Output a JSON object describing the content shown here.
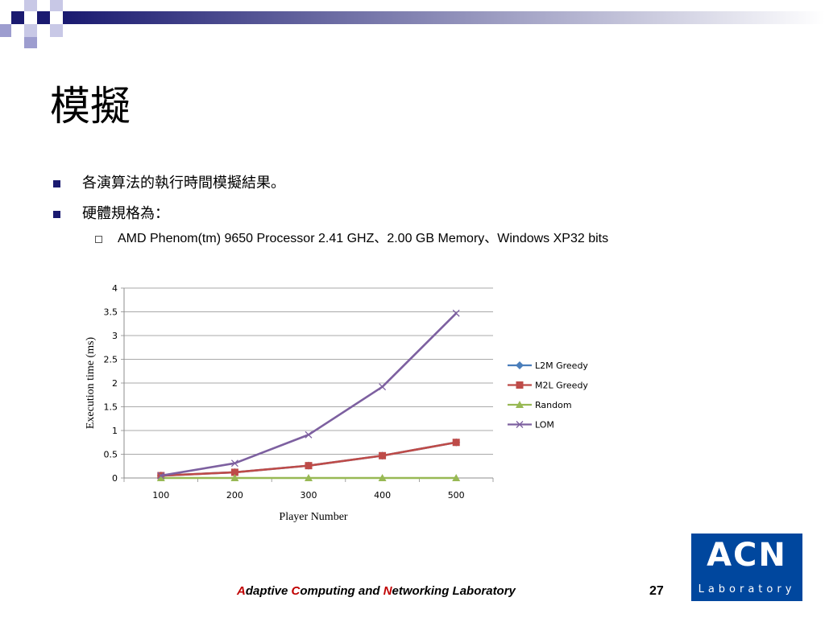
{
  "slide": {
    "title": "模擬",
    "bullets": [
      "各演算法的執行時間模擬結果。",
      "硬體規格為："
    ],
    "sub_bullet": "AMD Phenom(tm) 9650 Processor 2.41 GHZ、2.00 GB Memory、Windows XP32 bits"
  },
  "footer": {
    "lab_parts": [
      {
        "text": "A",
        "highlight": true
      },
      {
        "text": "daptive ",
        "highlight": false
      },
      {
        "text": "C",
        "highlight": true
      },
      {
        "text": "omputing and ",
        "highlight": false
      },
      {
        "text": "N",
        "highlight": true
      },
      {
        "text": "etworking Laboratory",
        "highlight": false
      }
    ],
    "page_number": "27"
  },
  "logo": {
    "big": "ACN",
    "small": "Laboratory"
  },
  "colors": {
    "accent": "#1a1a70",
    "highlight": "#c00000",
    "logo_bg": "#00479e"
  },
  "chart_data": {
    "type": "line",
    "xlabel": "Player Number",
    "ylabel": "Execution time (ms)",
    "categories": [
      "100",
      "200",
      "300",
      "400",
      "500"
    ],
    "ylim": [
      0,
      4
    ],
    "yticks": [
      "0",
      "0.5",
      "1",
      "1.5",
      "2",
      "2.5",
      "3",
      "3.5",
      "4"
    ],
    "grid": true,
    "legend_position": "right",
    "series": [
      {
        "name": "L2M Greedy",
        "color": "#4a7ebb",
        "marker": "diamond",
        "values": [
          0.05,
          0.12,
          0.26,
          0.47,
          0.75
        ]
      },
      {
        "name": "M2L Greedy",
        "color": "#be4b48",
        "marker": "square",
        "values": [
          0.05,
          0.12,
          0.26,
          0.47,
          0.75
        ]
      },
      {
        "name": "Random",
        "color": "#98b954",
        "marker": "triangle",
        "values": [
          0.0,
          0.0,
          0.0,
          0.0,
          0.0
        ]
      },
      {
        "name": "LOM",
        "color": "#7d60a0",
        "marker": "x",
        "values": [
          0.05,
          0.31,
          0.91,
          1.92,
          3.47
        ]
      }
    ]
  }
}
